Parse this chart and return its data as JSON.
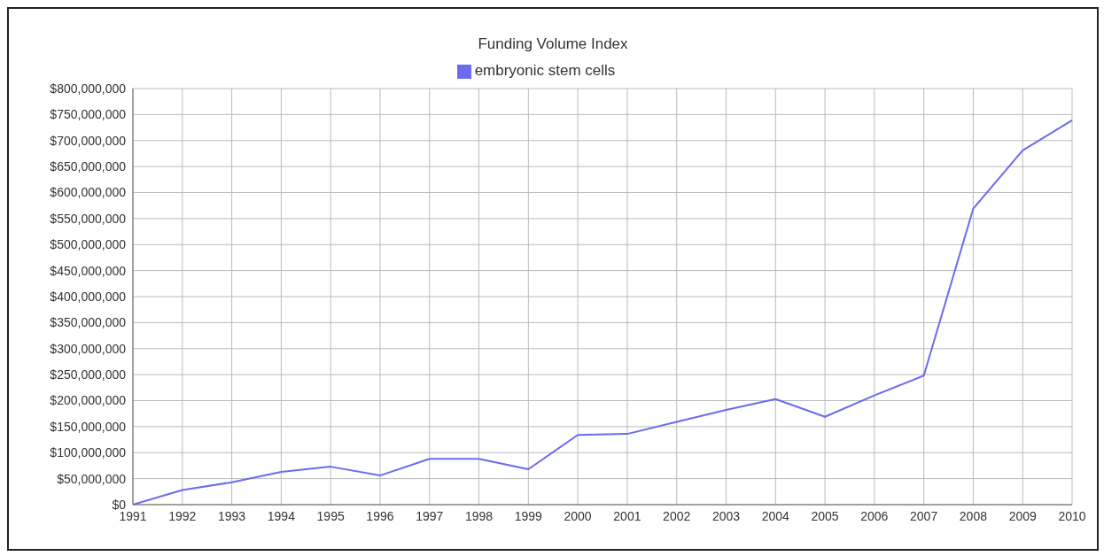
{
  "chart_data": {
    "type": "line",
    "title": "Funding Volume Index",
    "categories": [
      "1991",
      "1992",
      "1993",
      "1994",
      "1995",
      "1996",
      "1997",
      "1998",
      "1999",
      "2000",
      "2001",
      "2002",
      "2003",
      "2004",
      "2005",
      "2006",
      "2007",
      "2008",
      "2009",
      "2010"
    ],
    "series": [
      {
        "name": "embryonic stem cells",
        "color": "#6b6bef",
        "values": [
          0,
          28000000,
          43000000,
          63000000,
          73000000,
          56000000,
          88000000,
          88000000,
          68000000,
          134000000,
          136000000,
          159000000,
          182000000,
          203000000,
          169000000,
          210000000,
          248000000,
          569000000,
          681000000,
          739000000
        ]
      }
    ],
    "ylim": [
      0,
      800000000
    ],
    "yticks": [
      {
        "value": 0,
        "label": "$0"
      },
      {
        "value": 50000000,
        "label": "$50,000,000"
      },
      {
        "value": 100000000,
        "label": "$100,000,000"
      },
      {
        "value": 150000000,
        "label": "$150,000,000"
      },
      {
        "value": 200000000,
        "label": "$200,000,000"
      },
      {
        "value": 250000000,
        "label": "$250,000,000"
      },
      {
        "value": 300000000,
        "label": "$300,000,000"
      },
      {
        "value": 350000000,
        "label": "$350,000,000"
      },
      {
        "value": 400000000,
        "label": "$400,000,000"
      },
      {
        "value": 450000000,
        "label": "$450,000,000"
      },
      {
        "value": 500000000,
        "label": "$500,000,000"
      },
      {
        "value": 550000000,
        "label": "$550,000,000"
      },
      {
        "value": 600000000,
        "label": "$600,000,000"
      },
      {
        "value": 650000000,
        "label": "$650,000,000"
      },
      {
        "value": 700000000,
        "label": "$700,000,000"
      },
      {
        "value": 750000000,
        "label": "$750,000,000"
      },
      {
        "value": 800000000,
        "label": "$800,000,000"
      }
    ],
    "grid": true,
    "legend": "top",
    "marker": "none",
    "line_style": "solid"
  }
}
